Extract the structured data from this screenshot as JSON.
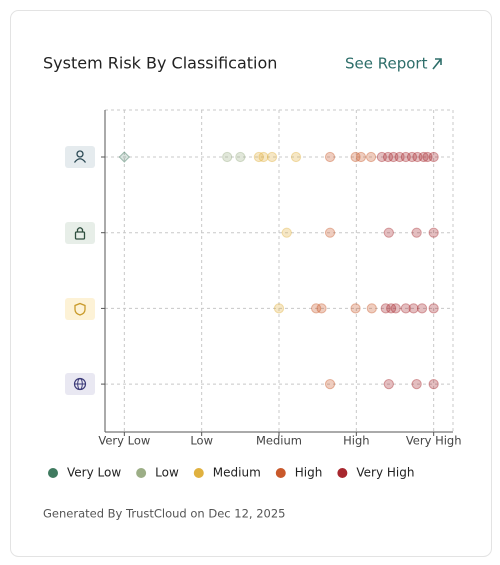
{
  "chart_data": {
    "type": "dotplot",
    "title": "System Risk By Classification",
    "link": "See Report",
    "footer": "Generated By TrustCloud on Dec 12, 2025",
    "xlim": [
      -0.25,
      4.25
    ],
    "xticks": [
      {
        "value": 0,
        "label": "Very Low"
      },
      {
        "value": 1,
        "label": "Low"
      },
      {
        "value": 2,
        "label": "Medium"
      },
      {
        "value": 3,
        "label": "High"
      },
      {
        "value": 4,
        "label": "Very High"
      }
    ],
    "grid": true,
    "categories": [
      null,
      null,
      null,
      null
    ],
    "series": [
      {
        "name": "Very Low",
        "color": "#3f7a5f",
        "marker": "diamond",
        "values": [
          [
            0
          ],
          [],
          [],
          []
        ]
      },
      {
        "name": "Low",
        "color": "#9cae86",
        "values": [
          [
            1.33,
            1.5
          ],
          [],
          [],
          []
        ]
      },
      {
        "name": "Medium",
        "color": "#e0b13f",
        "values": [
          [
            1.74,
            1.8,
            1.91,
            2.22
          ],
          [
            2.1
          ],
          [
            2.0
          ],
          []
        ]
      },
      {
        "name": "High",
        "color": "#c9592b",
        "values": [
          [
            2.66,
            2.99,
            3.06,
            3.19
          ],
          [
            2.66
          ],
          [
            2.48,
            2.55,
            2.99,
            3.2
          ],
          [
            2.66
          ]
        ]
      },
      {
        "name": "Very High",
        "color": "#a7272e",
        "values": [
          [
            3.33,
            3.41,
            3.48,
            3.56,
            3.64,
            3.72,
            3.79,
            3.87,
            3.92,
            4.0
          ],
          [
            3.42,
            3.78,
            4.0
          ],
          [
            3.38,
            3.45,
            3.51,
            3.64,
            3.74,
            3.85,
            4.0
          ],
          [
            3.42,
            3.78,
            4.0
          ]
        ]
      }
    ]
  }
}
